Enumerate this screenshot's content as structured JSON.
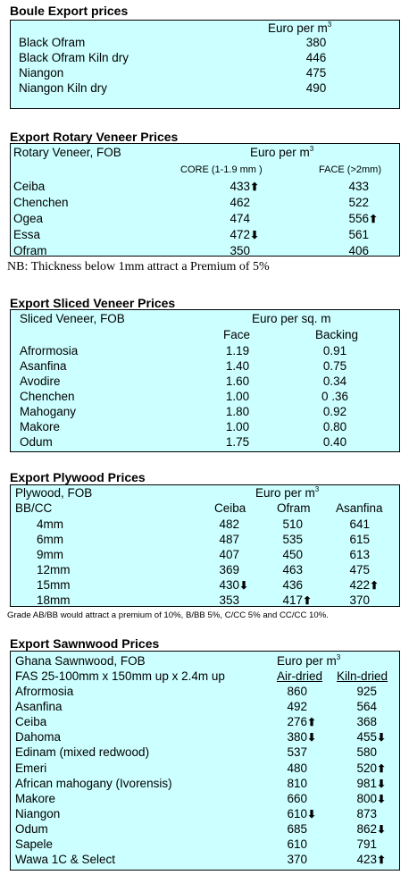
{
  "boule": {
    "title": "Boule Export prices",
    "unit": "Euro per m",
    "unit_sup": "3",
    "rows": [
      {
        "name": "Black Ofram",
        "value": "380"
      },
      {
        "name": "Black Ofram  Kiln dry",
        "value": "446"
      },
      {
        "name": "Niangon",
        "value": "475"
      },
      {
        "name": "Niangon Kiln dry",
        "value": "490"
      }
    ]
  },
  "rotary": {
    "title": "Export Rotary Veneer Prices",
    "header_label": "Rotary Veneer,  FOB",
    "unit": "Euro  per m",
    "unit_sup": "3",
    "col1": "CORE (1-1.9 mm )",
    "col2": "FACE (>2mm)",
    "rows": [
      {
        "name": "Ceiba",
        "core": "433",
        "core_trend": "up",
        "face": "433",
        "face_trend": ""
      },
      {
        "name": "Chenchen",
        "core": "462",
        "core_trend": "",
        "face": "522",
        "face_trend": ""
      },
      {
        "name": "Ogea",
        "core": "474",
        "core_trend": "",
        "face": "556",
        "face_trend": "up"
      },
      {
        "name": "Essa",
        "core": "472",
        "core_trend": "down",
        "face": "561",
        "face_trend": ""
      },
      {
        "name": "Ofram",
        "core": "350",
        "core_trend": "",
        "face": "406",
        "face_trend": ""
      }
    ],
    "note": "NB: Thickness below 1mm attract a Premium of 5%"
  },
  "sliced": {
    "title": "Export Sliced Veneer Prices",
    "header_label": "Sliced Veneer, FOB",
    "unit": "Euro per sq. m",
    "col1": "Face",
    "col2": "Backing",
    "rows": [
      {
        "name": "Afrormosia",
        "face": "1.19",
        "backing": "0.91"
      },
      {
        "name": "Asanfina",
        "face": "1.40",
        "backing": "0.75"
      },
      {
        "name": "Avodire",
        "face": "1.60",
        "backing": "0.34"
      },
      {
        "name": "Chenchen",
        "face": "1.00",
        "backing": "0 .36"
      },
      {
        "name": "Mahogany",
        "face": "1.80",
        "backing": "0.92"
      },
      {
        "name": "Makore",
        "face": "1.00",
        "backing": "0.80"
      },
      {
        "name": "Odum",
        "face": "1.75",
        "backing": "0.40"
      }
    ]
  },
  "plywood": {
    "title": "Export Plywood Prices",
    "header_label": "Plywood, FOB",
    "unit": "Euro per m",
    "unit_sup": "3",
    "grade_label": "BB/CC",
    "cols": [
      "Ceiba",
      "Ofram",
      "Asanfina"
    ],
    "rows": [
      {
        "name": "4mm",
        "v": [
          "482",
          "510",
          "641"
        ],
        "t": [
          "",
          "",
          ""
        ]
      },
      {
        "name": "6mm",
        "v": [
          "487",
          "535",
          "615"
        ],
        "t": [
          "",
          "",
          ""
        ]
      },
      {
        "name": "9mm",
        "v": [
          "407",
          "450",
          "613"
        ],
        "t": [
          "",
          "",
          ""
        ]
      },
      {
        "name": "12mm",
        "v": [
          "369",
          "463",
          "475"
        ],
        "t": [
          "",
          "",
          ""
        ]
      },
      {
        "name": "15mm",
        "v": [
          "430",
          "436",
          "422"
        ],
        "t": [
          "down",
          "",
          "up"
        ]
      },
      {
        "name": "18mm",
        "v": [
          "353",
          "417",
          "370"
        ],
        "t": [
          "",
          "up",
          ""
        ]
      }
    ],
    "note": "Grade AB/BB would attract a premium of 10%, B/BB 5%, C/CC 5% and CC/CC 10%."
  },
  "sawn": {
    "title": "Export Sawnwood Prices",
    "header_label": "Ghana Sawnwood, FOB",
    "unit": "Euro per m",
    "unit_sup": "3",
    "spec": "FAS 25-100mm x 150mm up x 2.4m up",
    "col1": "Air-dried",
    "col2": "Kiln-dried",
    "rows": [
      {
        "name": "Afrormosia",
        "air": "860",
        "air_t": "",
        "kiln": "925",
        "kiln_t": ""
      },
      {
        "name": "Asanfina",
        "air": "492",
        "air_t": "",
        "kiln": "564",
        "kiln_t": ""
      },
      {
        "name": "Ceiba",
        "air": "276",
        "air_t": "up",
        "kiln": "368",
        "kiln_t": ""
      },
      {
        "name": "Dahoma",
        "air": "380",
        "air_t": "down",
        "kiln": "455",
        "kiln_t": "down"
      },
      {
        "name": "Edinam (mixed redwood)",
        "air": "537",
        "air_t": "",
        "kiln": "580",
        "kiln_t": ""
      },
      {
        "name": "Emeri",
        "air": "480",
        "air_t": "",
        "kiln": "520",
        "kiln_t": "up"
      },
      {
        "name": "African mahogany (Ivorensis)",
        "air": "810",
        "air_t": "",
        "kiln": "981",
        "kiln_t": "down"
      },
      {
        "name": "Makore",
        "air": "660",
        "air_t": "",
        "kiln": "800",
        "kiln_t": "down"
      },
      {
        "name": "Niangon",
        "air": "610",
        "air_t": "down",
        "kiln": "873",
        "kiln_t": ""
      },
      {
        "name": "Odum",
        "air": "685",
        "air_t": "",
        "kiln": "862",
        "kiln_t": "down"
      },
      {
        "name": "Sapele",
        "air": "610",
        "air_t": "",
        "kiln": "791",
        "kiln_t": ""
      },
      {
        "name": "Wawa 1C & Select",
        "air": "370",
        "air_t": "",
        "kiln": "423",
        "kiln_t": "up"
      }
    ]
  },
  "icons": {
    "up": "arrow-up-icon",
    "down": "arrow-down-icon"
  },
  "colors": {
    "box_fill": "#ccffff",
    "border": "#000000"
  }
}
